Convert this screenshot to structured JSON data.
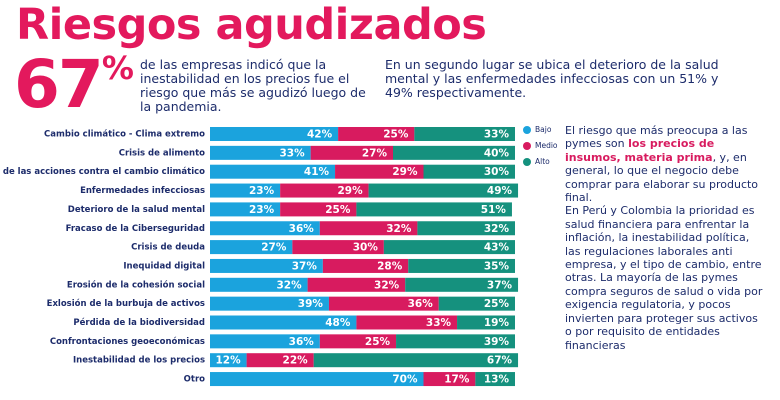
{
  "header": {
    "title": "Riesgos agudizados",
    "stat_number": "67",
    "stat_unit": "%",
    "intro": "de las empresas indicó que la inestabilidad en los precios fue el riesgo que más se agudizó luego de la pandemia.",
    "second": "En un segundo lugar se ubica el deterioro de la salud mental y las enfermedades infecciosas con un 51% y 49% respectivamente."
  },
  "sidebar": {
    "p1_start": "El riesgo que más preocupa a las pymes son ",
    "p1_highlight": "los precios de insumos, materia prima",
    "p1_end": ", y, en general, lo que el negocio debe comprar para elaborar su producto final.",
    "p2": "En Perú y Colombia la prioridad es salud financiera para enfrentar la inflación, la inestabilidad política, las regulaciones laborales anti empresa, y el tipo de cambio, entre otras. La mayoría de las pymes compra seguros de salud o vida por exigencia regulatoria, y pocos invierten para proteger sus activos o por requisito de entidades financieras"
  },
  "chart_data": {
    "type": "stacked-bar-horizontal",
    "legend": "right",
    "categories": [
      "Cambio climático - Clima extremo",
      "Crisis de alimento",
      "Fracaso de las acciones contra el cambio climático",
      "Enfermedades infecciosas",
      "Deterioro de la salud mental",
      "Fracaso de la Ciberseguridad",
      "Crisis de deuda",
      "Inequidad digital",
      "Erosión de la cohesión social",
      "Exlosión de la burbuja de activos",
      "Pérdida de la biodiversidad",
      "Confrontaciones geoeconómicas",
      "Inestabilidad de los precios",
      "Otro"
    ],
    "series": [
      {
        "name": "Bajo",
        "color": "#1ba3dd",
        "values": [
          42,
          33,
          41,
          23,
          23,
          36,
          27,
          37,
          32,
          39,
          48,
          36,
          12,
          70
        ],
        "value_labels": [
          "42%",
          "33%",
          "41%",
          "23%",
          "23%",
          "36%",
          "27%",
          "37%",
          "32%",
          "39%",
          "48%",
          "36%",
          "12%",
          "70%"
        ]
      },
      {
        "name": "Medio",
        "color": "#d81b5f",
        "values": [
          25,
          27,
          29,
          29,
          25,
          32,
          30,
          28,
          32,
          36,
          33,
          25,
          22,
          17
        ],
        "value_labels": [
          "25%",
          "27%",
          "29%",
          "29%",
          "25%",
          "32%",
          "30%",
          "28%",
          "32%",
          "36%",
          "33%",
          "25%",
          "22%",
          "17%"
        ]
      },
      {
        "name": "Alto",
        "color": "#15917e",
        "values": [
          33,
          40,
          30,
          49,
          51,
          32,
          43,
          35,
          37,
          25,
          19,
          39,
          67,
          13
        ],
        "value_labels": [
          "33%",
          "40%",
          "30%",
          "49%",
          "51%",
          "32%",
          "43%",
          "35%",
          "37%",
          "25%",
          "19%",
          "39%",
          "67%",
          "13%"
        ]
      }
    ]
  }
}
